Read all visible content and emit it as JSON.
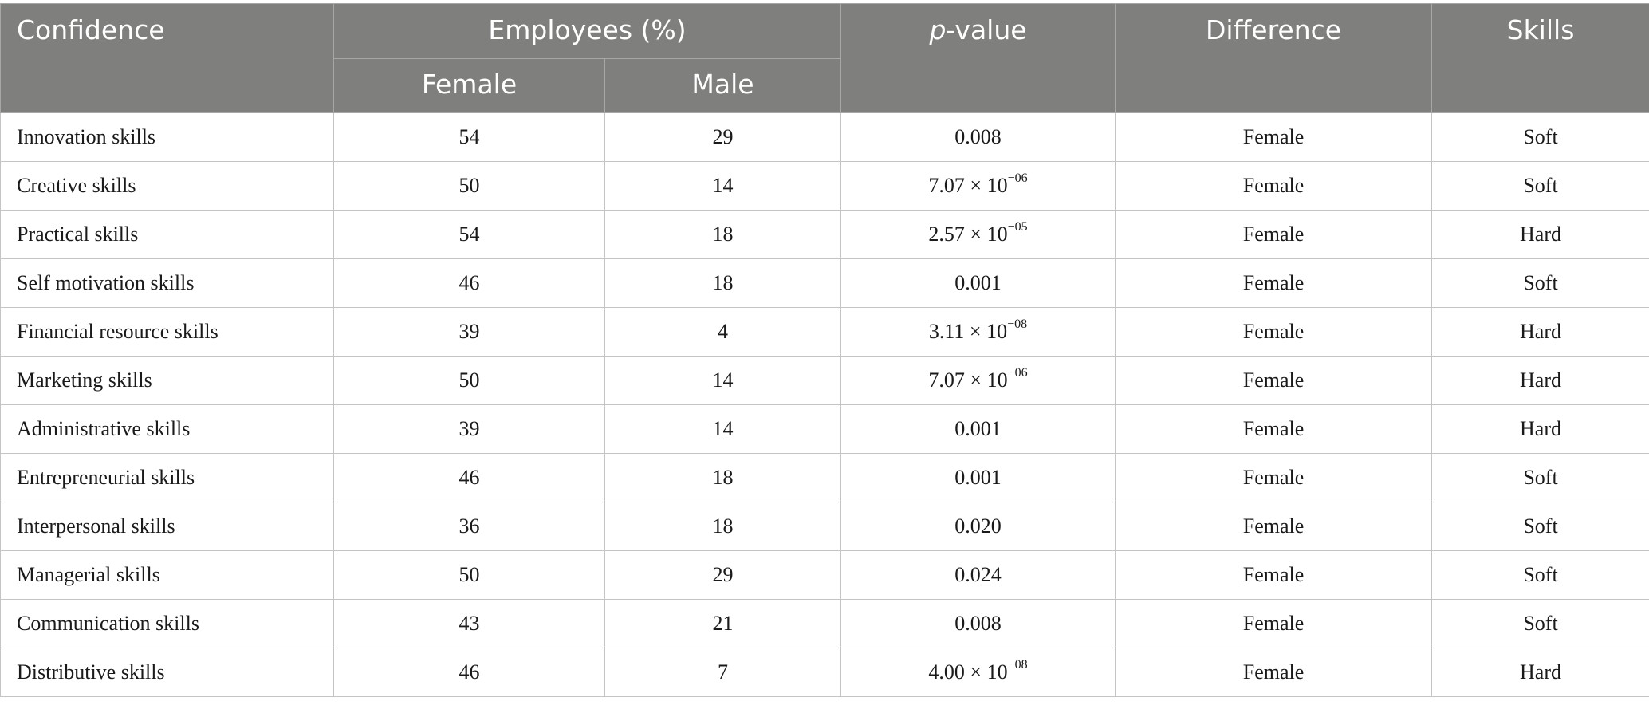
{
  "header": {
    "confidence": "Confidence",
    "employees": "Employees (%)",
    "female": "Female",
    "male": "Male",
    "p_italic": "p",
    "p_rest": "-value",
    "difference": "Difference",
    "skills": "Skills"
  },
  "rows": [
    {
      "label": "Innovation skills",
      "female": "54",
      "male": "29",
      "p_base": "0.008",
      "p_exp": "",
      "difference": "Female",
      "skills": "Soft"
    },
    {
      "label": "Creative skills",
      "female": "50",
      "male": "14",
      "p_base": "7.07 × 10",
      "p_exp": "−06",
      "difference": "Female",
      "skills": "Soft"
    },
    {
      "label": "Practical skills",
      "female": "54",
      "male": "18",
      "p_base": "2.57 × 10",
      "p_exp": "−05",
      "difference": "Female",
      "skills": "Hard"
    },
    {
      "label": "Self motivation skills",
      "female": "46",
      "male": "18",
      "p_base": "0.001",
      "p_exp": "",
      "difference": "Female",
      "skills": "Soft"
    },
    {
      "label": "Financial resource skills",
      "female": "39",
      "male": "4",
      "p_base": "3.11 × 10",
      "p_exp": "−08",
      "difference": "Female",
      "skills": "Hard"
    },
    {
      "label": "Marketing skills",
      "female": "50",
      "male": "14",
      "p_base": "7.07 × 10",
      "p_exp": "−06",
      "difference": "Female",
      "skills": "Hard"
    },
    {
      "label": "Administrative skills",
      "female": "39",
      "male": "14",
      "p_base": "0.001",
      "p_exp": "",
      "difference": "Female",
      "skills": "Hard"
    },
    {
      "label": "Entrepreneurial skills",
      "female": "46",
      "male": "18",
      "p_base": "0.001",
      "p_exp": "",
      "difference": "Female",
      "skills": "Soft"
    },
    {
      "label": "Interpersonal skills",
      "female": "36",
      "male": "18",
      "p_base": "0.020",
      "p_exp": "",
      "difference": "Female",
      "skills": "Soft"
    },
    {
      "label": "Managerial skills",
      "female": "50",
      "male": "29",
      "p_base": "0.024",
      "p_exp": "",
      "difference": "Female",
      "skills": "Soft"
    },
    {
      "label": "Communication skills",
      "female": "43",
      "male": "21",
      "p_base": "0.008",
      "p_exp": "",
      "difference": "Female",
      "skills": "Soft"
    },
    {
      "label": "Distributive skills",
      "female": "46",
      "male": "7",
      "p_base": "4.00 × 10",
      "p_exp": "−08",
      "difference": "Female",
      "skills": "Hard"
    }
  ]
}
